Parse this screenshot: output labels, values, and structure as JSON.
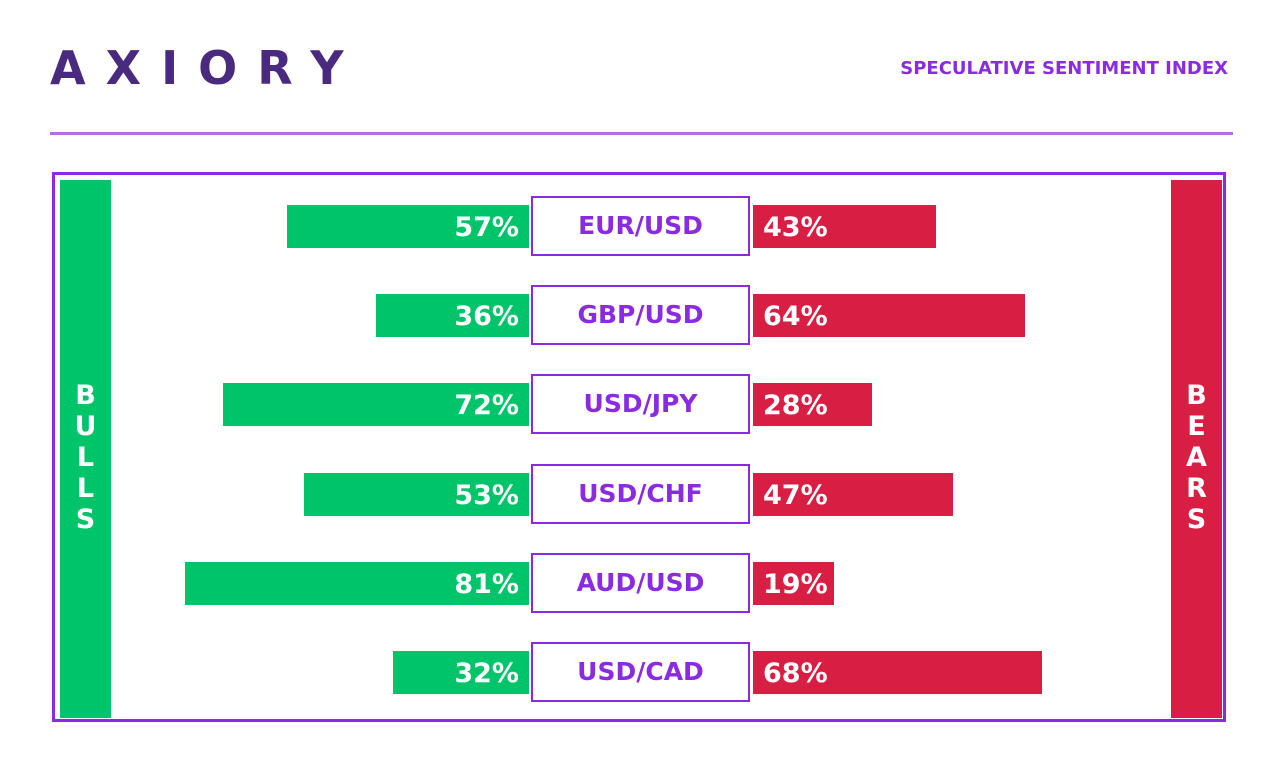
{
  "header": {
    "logo": "AXIORY",
    "subtitle": "SPECULATIVE SENTIMENT INDEX"
  },
  "colors": {
    "logo": "#4a2a7f",
    "accent": "#8a2be2",
    "rule": "#b36ee6",
    "bulls": "#00c46a",
    "bears": "#d91e44"
  },
  "chart_data": {
    "type": "bar",
    "categories": [
      "EUR/USD",
      "GBP/USD",
      "USD/JPY",
      "USD/CHF",
      "AUD/USD",
      "USD/CAD"
    ],
    "series": [
      {
        "name": "BULLS",
        "values": [
          57,
          36,
          72,
          53,
          81,
          32
        ]
      },
      {
        "name": "BEARS",
        "values": [
          43,
          64,
          28,
          47,
          19,
          68
        ]
      }
    ],
    "value_suffix": "%",
    "xlim": [
      0,
      100
    ]
  }
}
